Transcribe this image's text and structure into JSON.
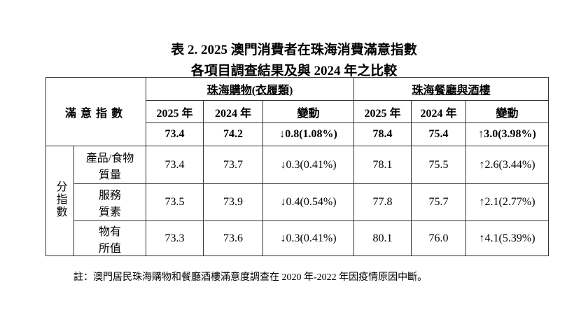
{
  "title": [
    "表 2. 2025 澳門消費者在珠海消費滿意指數",
    "各項目調查結果及與 2024 年之比較"
  ],
  "table": {
    "corner": "滿意指數",
    "groups": [
      "珠海購物(衣履類)",
      "珠海餐廳與酒樓"
    ],
    "columns": [
      "2025 年",
      "2024 年",
      "變動",
      "2025 年",
      "2024 年",
      "變動"
    ],
    "overall": [
      "73.4",
      "74.2",
      "↓0.8(1.08%)",
      "78.4",
      "75.4",
      "↑3.0(3.98%)"
    ],
    "sub_label": "分指數",
    "rows": [
      {
        "label": [
          "產品/食物",
          "質量"
        ],
        "cells": [
          "73.4",
          "73.7",
          "↓0.3(0.41%)",
          "78.1",
          "75.5",
          "↑2.6(3.44%)"
        ]
      },
      {
        "label": [
          "服務",
          "質素"
        ],
        "cells": [
          "73.5",
          "73.9",
          "↓0.4(0.54%)",
          "77.8",
          "75.7",
          "↑2.1(2.77%)"
        ]
      },
      {
        "label": [
          "物有",
          "所值"
        ],
        "cells": [
          "73.3",
          "73.6",
          "↓0.3(0.41%)",
          "80.1",
          "76.0",
          "↑4.1(5.39%)"
        ]
      }
    ]
  },
  "note": "註：澳門居民珠海購物和餐廳酒樓滿意度調查在 2020 年-2022 年因疫情原因中斷。"
}
